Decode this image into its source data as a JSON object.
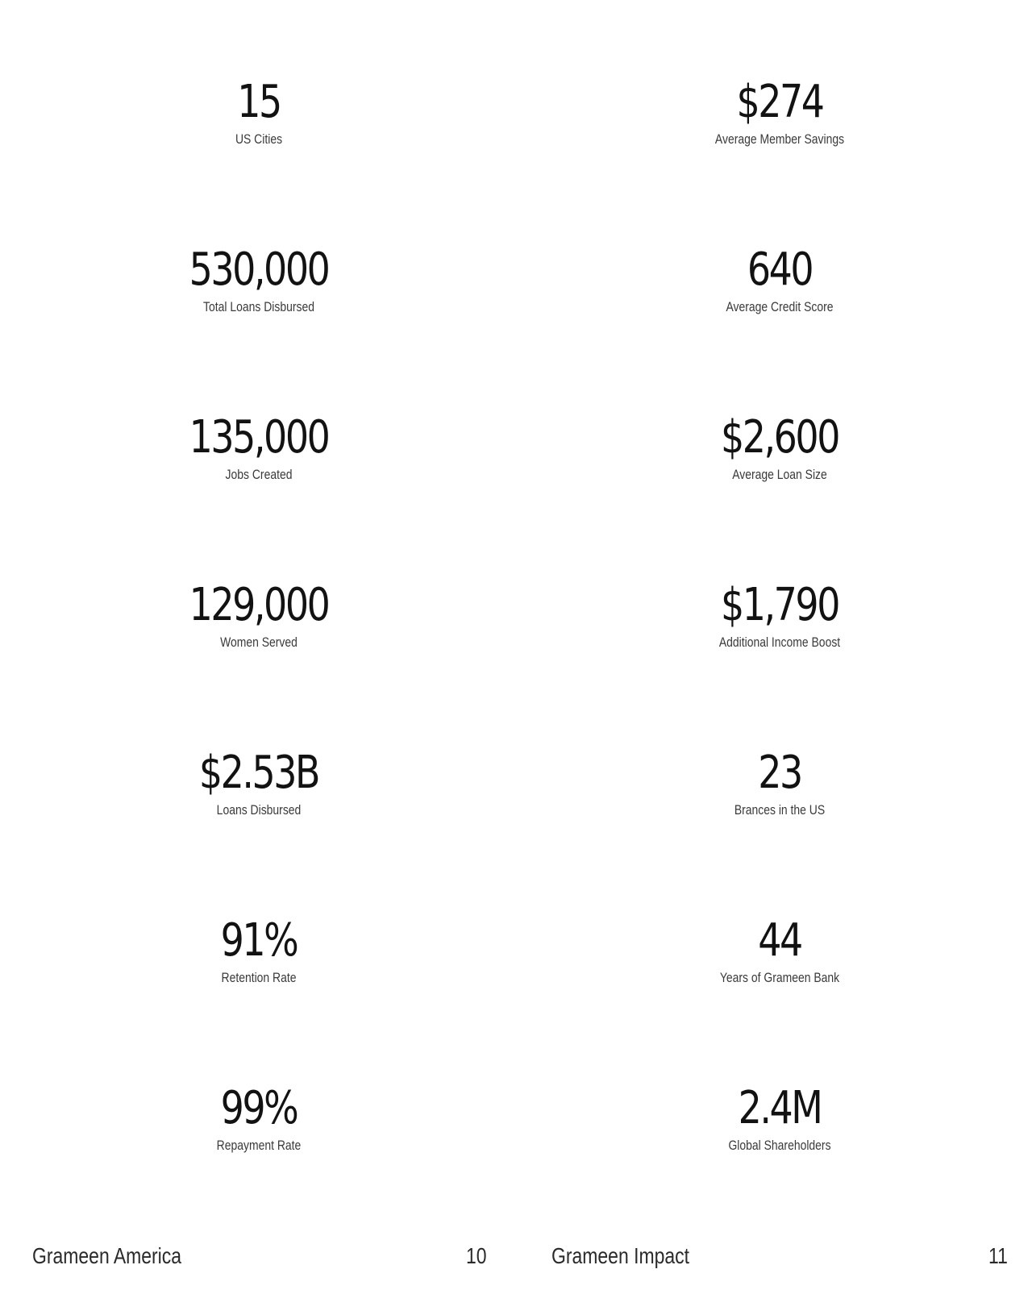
{
  "left_stats": [
    {
      "value": "15",
      "label": "US Cities"
    },
    {
      "value": "530,000",
      "label": "Total Loans Disbursed"
    },
    {
      "value": "135,000",
      "label": "Jobs Created"
    },
    {
      "value": "129,000",
      "label": "Women Served"
    },
    {
      "value": "$2.53B",
      "label": "Loans Disbursed"
    },
    {
      "value": "91%",
      "label": "Retention Rate"
    },
    {
      "value": "99%",
      "label": "Repayment Rate"
    }
  ],
  "right_stats": [
    {
      "value": "$274",
      "label": "Average Member Savings"
    },
    {
      "value": "640",
      "label": "Average Credit Score"
    },
    {
      "value": "$2,600",
      "label": "Average Loan Size"
    },
    {
      "value": "$1,790",
      "label": "Additional Income Boost"
    },
    {
      "value": "23",
      "label": "Brances in the US"
    },
    {
      "value": "44",
      "label": "Years of Grameen Bank"
    },
    {
      "value": "2.4M",
      "label": "Global Shareholders"
    }
  ],
  "footer": {
    "left_title": "Grameen America",
    "left_page": "10",
    "right_title": "Grameen Impact",
    "right_page": "11"
  }
}
